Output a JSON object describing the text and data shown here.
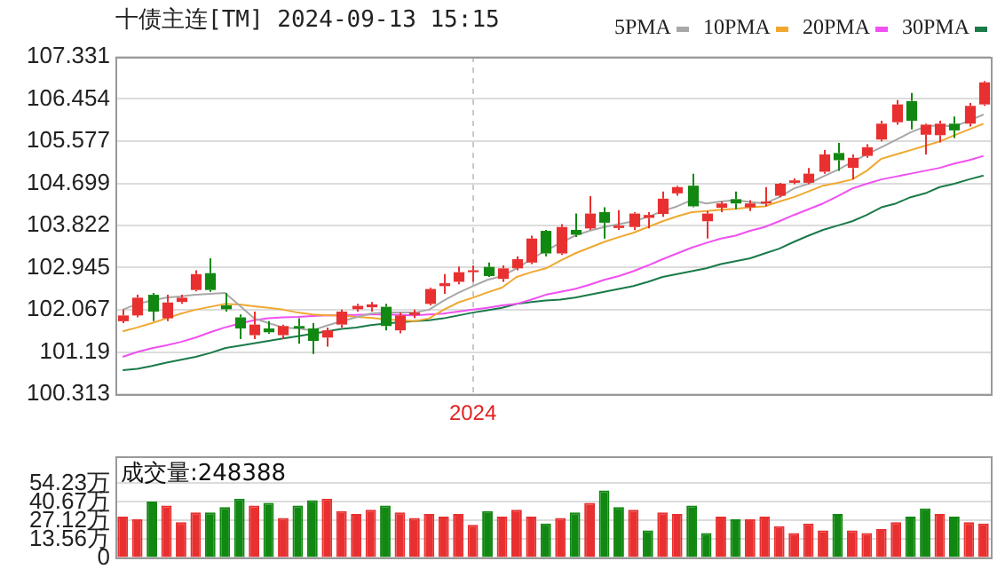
{
  "chart_data": [
    {
      "type": "candlestick",
      "title": "十债主连[TM] 2024-09-13 15:15",
      "categories": [
        null,
        null,
        null,
        null,
        null,
        null,
        null,
        null,
        null,
        null,
        null,
        null,
        null,
        null,
        null,
        null,
        null,
        null,
        null,
        null,
        null,
        null,
        null,
        null,
        "2024",
        null,
        null,
        null,
        null,
        null,
        null,
        null,
        null,
        null,
        null,
        null,
        null,
        null,
        null,
        null,
        null,
        null,
        null,
        null,
        null,
        null,
        null,
        null,
        null,
        null,
        null,
        null,
        null,
        null,
        null,
        null,
        null,
        null,
        null,
        null
      ],
      "ohlc": [
        [
          101.83,
          102.07,
          101.79,
          101.95
        ],
        [
          101.95,
          102.38,
          101.91,
          102.32
        ],
        [
          102.38,
          102.42,
          101.83,
          102.03
        ],
        [
          101.89,
          102.38,
          101.83,
          102.22
        ],
        [
          102.23,
          102.38,
          102.19,
          102.32
        ],
        [
          102.48,
          102.89,
          102.45,
          102.81
        ],
        [
          102.83,
          103.14,
          102.44,
          102.48
        ],
        [
          102.16,
          102.42,
          102.03,
          102.08
        ],
        [
          101.91,
          101.97,
          101.46,
          101.68
        ],
        [
          101.54,
          102.03,
          101.46,
          101.76
        ],
        [
          101.68,
          101.83,
          101.57,
          101.6
        ],
        [
          101.54,
          101.76,
          101.46,
          101.73
        ],
        [
          101.73,
          101.89,
          101.36,
          101.68
        ],
        [
          101.68,
          101.79,
          101.15,
          101.42
        ],
        [
          101.49,
          101.7,
          101.3,
          101.64
        ],
        [
          101.76,
          102.07,
          101.7,
          102.03
        ],
        [
          102.08,
          102.19,
          102.03,
          102.15
        ],
        [
          102.12,
          102.23,
          102.03,
          102.18
        ],
        [
          102.13,
          102.19,
          101.64,
          101.73
        ],
        [
          101.64,
          102.01,
          101.58,
          101.95
        ],
        [
          101.96,
          102.07,
          101.89,
          102.01
        ],
        [
          102.19,
          102.53,
          102.16,
          102.5
        ],
        [
          102.56,
          102.81,
          102.4,
          102.62
        ],
        [
          102.65,
          102.97,
          102.6,
          102.85
        ],
        [
          102.85,
          102.99,
          102.65,
          102.89
        ],
        [
          102.96,
          103.05,
          102.75,
          102.77
        ],
        [
          102.71,
          102.99,
          102.65,
          102.93
        ],
        [
          102.93,
          103.18,
          102.89,
          103.12
        ],
        [
          103.05,
          103.61,
          103.02,
          103.55
        ],
        [
          103.71,
          103.73,
          103.18,
          103.24
        ],
        [
          103.24,
          103.85,
          103.21,
          103.79
        ],
        [
          103.73,
          104.07,
          103.58,
          103.63
        ],
        [
          103.76,
          104.43,
          103.73,
          104.07
        ],
        [
          104.1,
          104.2,
          103.55,
          103.88
        ],
        [
          103.77,
          104.14,
          103.73,
          103.82
        ],
        [
          103.79,
          104.1,
          103.73,
          104.07
        ],
        [
          103.98,
          104.1,
          103.76,
          104.04
        ],
        [
          104.06,
          104.53,
          104.0,
          104.38
        ],
        [
          104.49,
          104.65,
          104.44,
          104.62
        ],
        [
          104.65,
          104.9,
          104.2,
          104.22
        ],
        [
          103.91,
          104.12,
          103.55,
          104.07
        ],
        [
          104.19,
          104.32,
          104.1,
          104.28
        ],
        [
          104.37,
          104.53,
          104.16,
          104.28
        ],
        [
          104.2,
          104.35,
          104.12,
          104.28
        ],
        [
          104.28,
          104.62,
          104.22,
          104.32
        ],
        [
          104.44,
          104.71,
          104.41,
          104.69
        ],
        [
          104.71,
          104.8,
          104.68,
          104.76
        ],
        [
          104.71,
          105.02,
          104.68,
          104.9
        ],
        [
          104.94,
          105.39,
          104.9,
          105.3
        ],
        [
          105.33,
          105.54,
          104.96,
          105.18
        ],
        [
          105.02,
          105.3,
          104.78,
          105.23
        ],
        [
          105.27,
          105.51,
          105.23,
          105.45
        ],
        [
          105.61,
          106.0,
          105.57,
          105.94
        ],
        [
          105.97,
          106.43,
          105.92,
          106.34
        ],
        [
          106.41,
          106.58,
          105.82,
          106.0
        ],
        [
          105.71,
          105.94,
          105.3,
          105.92
        ],
        [
          105.7,
          106.0,
          105.55,
          105.94
        ],
        [
          105.94,
          106.09,
          105.64,
          105.8
        ],
        [
          105.94,
          106.37,
          105.88,
          106.31
        ],
        [
          106.34,
          106.83,
          106.31,
          106.8
        ]
      ],
      "colors": [
        "#e83030",
        "#e83030",
        "#118811",
        "#e83030",
        "#e83030",
        "#e83030",
        "#118811",
        "#118811",
        "#118811",
        "#e83030",
        "#118811",
        "#e83030",
        "#118811",
        "#118811",
        "#e83030",
        "#e83030",
        "#e83030",
        "#e83030",
        "#118811",
        "#e83030",
        "#e83030",
        "#e83030",
        "#e83030",
        "#e83030",
        "#e83030",
        "#118811",
        "#e83030",
        "#e83030",
        "#e83030",
        "#118811",
        "#e83030",
        "#118811",
        "#e83030",
        "#118811",
        "#e83030",
        "#e83030",
        "#e83030",
        "#e83030",
        "#e83030",
        "#118811",
        "#e83030",
        "#e83030",
        "#118811",
        "#e83030",
        "#e83030",
        "#e83030",
        "#e83030",
        "#e83030",
        "#e83030",
        "#118811",
        "#e83030",
        "#e83030",
        "#e83030",
        "#e83030",
        "#118811",
        "#e83030",
        "#e83030",
        "#118811",
        "#e83030",
        "#e83030"
      ],
      "series": [
        {
          "name": "5PMA",
          "type": "line",
          "color": "#a8a8a8",
          "values": [
            102.07,
            102.19,
            102.26,
            102.32,
            102.35,
            102.38,
            102.4,
            102.42,
            102.16,
            101.89,
            101.79,
            101.7,
            101.68,
            101.64,
            101.74,
            101.83,
            101.91,
            101.99,
            102.01,
            102.01,
            102.01,
            102.07,
            102.26,
            102.42,
            102.56,
            102.69,
            102.77,
            102.93,
            103.12,
            103.3,
            103.46,
            103.61,
            103.71,
            103.79,
            103.85,
            103.91,
            104.0,
            104.12,
            104.22,
            104.35,
            104.28,
            104.32,
            104.35,
            104.31,
            104.28,
            104.41,
            104.59,
            104.69,
            104.84,
            104.98,
            105.14,
            105.3,
            105.45,
            105.6,
            105.76,
            105.88,
            105.91,
            105.88,
            106.0,
            106.13
          ]
        },
        {
          "name": "10PMA",
          "type": "line",
          "color": "#f0a830",
          "values": [
            101.62,
            101.7,
            101.79,
            101.89,
            101.99,
            102.07,
            102.13,
            102.19,
            102.18,
            102.14,
            102.11,
            102.07,
            102.01,
            101.97,
            101.95,
            101.95,
            101.92,
            101.9,
            101.87,
            101.85,
            101.83,
            101.89,
            102.07,
            102.22,
            102.32,
            102.43,
            102.53,
            102.75,
            102.85,
            102.93,
            103.09,
            103.24,
            103.36,
            103.48,
            103.58,
            103.67,
            103.79,
            103.91,
            104.01,
            104.1,
            104.12,
            104.15,
            104.17,
            104.2,
            104.22,
            104.32,
            104.41,
            104.53,
            104.65,
            104.71,
            104.78,
            104.96,
            105.21,
            105.3,
            105.39,
            105.48,
            105.57,
            105.7,
            105.82,
            105.94
          ]
        },
        {
          "name": "20PMA",
          "type": "line",
          "color": "#f050f0",
          "values": [
            101.09,
            101.19,
            101.27,
            101.33,
            101.4,
            101.49,
            101.6,
            101.7,
            101.78,
            101.85,
            101.89,
            101.91,
            101.92,
            101.94,
            101.95,
            101.95,
            101.96,
            101.97,
            101.97,
            101.96,
            101.95,
            101.97,
            101.99,
            102.03,
            102.07,
            102.11,
            102.16,
            102.19,
            102.28,
            102.38,
            102.44,
            102.5,
            102.59,
            102.69,
            102.77,
            102.87,
            102.99,
            103.12,
            103.24,
            103.36,
            103.46,
            103.55,
            103.61,
            103.71,
            103.79,
            103.91,
            104.04,
            104.16,
            104.28,
            104.43,
            104.59,
            104.69,
            104.78,
            104.84,
            104.9,
            104.96,
            105.02,
            105.11,
            105.18,
            105.27
          ]
        },
        {
          "name": "30PMA",
          "type": "line",
          "color": "#1a7a4a",
          "values": [
            100.81,
            100.84,
            100.9,
            100.97,
            101.03,
            101.09,
            101.17,
            101.27,
            101.32,
            101.37,
            101.42,
            101.47,
            101.52,
            101.57,
            101.62,
            101.67,
            101.7,
            101.75,
            101.78,
            101.81,
            101.83,
            101.85,
            101.89,
            101.95,
            102.01,
            102.06,
            102.11,
            102.19,
            102.23,
            102.26,
            102.28,
            102.32,
            102.38,
            102.44,
            102.5,
            102.56,
            102.65,
            102.75,
            102.81,
            102.87,
            102.93,
            103.02,
            103.08,
            103.14,
            103.24,
            103.34,
            103.48,
            103.61,
            103.73,
            103.82,
            103.91,
            104.04,
            104.2,
            104.28,
            104.41,
            104.49,
            104.62,
            104.69,
            104.78,
            104.86
          ]
        }
      ],
      "ylim": [
        100.313,
        107.331
      ],
      "yticks": [
        100.313,
        101.19,
        102.067,
        102.945,
        103.822,
        104.699,
        105.577,
        106.454,
        107.331
      ],
      "grid": true,
      "legend": "top right",
      "marker": "none"
    },
    {
      "type": "bar",
      "categories": [
        null,
        null,
        null,
        null,
        null,
        null,
        null,
        null,
        null,
        null,
        null,
        null,
        null,
        null,
        null,
        null,
        null,
        null,
        null,
        null,
        null,
        null,
        null,
        null,
        null,
        null,
        null,
        null,
        null,
        null,
        null,
        null,
        null,
        null,
        null,
        null,
        null,
        null,
        null,
        null,
        null,
        null,
        null,
        null,
        null,
        null,
        null,
        null,
        null,
        null,
        null,
        null,
        null,
        null,
        null,
        null,
        null,
        null,
        null,
        null
      ],
      "values": [
        30,
        28,
        41,
        38,
        26,
        33,
        33,
        37,
        43,
        38,
        40,
        29,
        38,
        42,
        43,
        34,
        32,
        35,
        38,
        33,
        29,
        32,
        30,
        32,
        24,
        34,
        30,
        35,
        30,
        25,
        29,
        33,
        40,
        49,
        37,
        35,
        20,
        33,
        32,
        38,
        18,
        30,
        28,
        28,
        30,
        23,
        18,
        25,
        20,
        32,
        20,
        18,
        21,
        26,
        30,
        36,
        32,
        30,
        26,
        25
      ],
      "colors": [
        "#e83030",
        "#e83030",
        "#118811",
        "#e83030",
        "#e83030",
        "#e83030",
        "#118811",
        "#118811",
        "#118811",
        "#e83030",
        "#118811",
        "#e83030",
        "#118811",
        "#118811",
        "#e83030",
        "#e83030",
        "#e83030",
        "#e83030",
        "#118811",
        "#e83030",
        "#e83030",
        "#e83030",
        "#e83030",
        "#e83030",
        "#e83030",
        "#118811",
        "#e83030",
        "#e83030",
        "#e83030",
        "#118811",
        "#e83030",
        "#118811",
        "#e83030",
        "#118811",
        "#118811",
        "#e83030",
        "#118811",
        "#e83030",
        "#e83030",
        "#118811",
        "#118811",
        "#e83030",
        "#118811",
        "#e83030",
        "#e83030",
        "#e83030",
        "#e83030",
        "#e83030",
        "#e83030",
        "#118811",
        "#e83030",
        "#e83030",
        "#e83030",
        "#e83030",
        "#118811",
        "#118811",
        "#e83030",
        "#118811",
        "#e83030",
        "#e83030"
      ],
      "ylim": [
        0,
        74.2
      ],
      "yticks": [
        0,
        {
          "value": 13.56,
          "label": "13.56万"
        },
        {
          "value": 27.12,
          "label": "27.12万"
        },
        {
          "value": 40.67,
          "label": "40.67万"
        },
        {
          "value": 54.23,
          "label": "54.23万"
        }
      ],
      "annotations": [
        "成交量:248388"
      ],
      "grid": "y",
      "tick_labels": "y"
    }
  ]
}
